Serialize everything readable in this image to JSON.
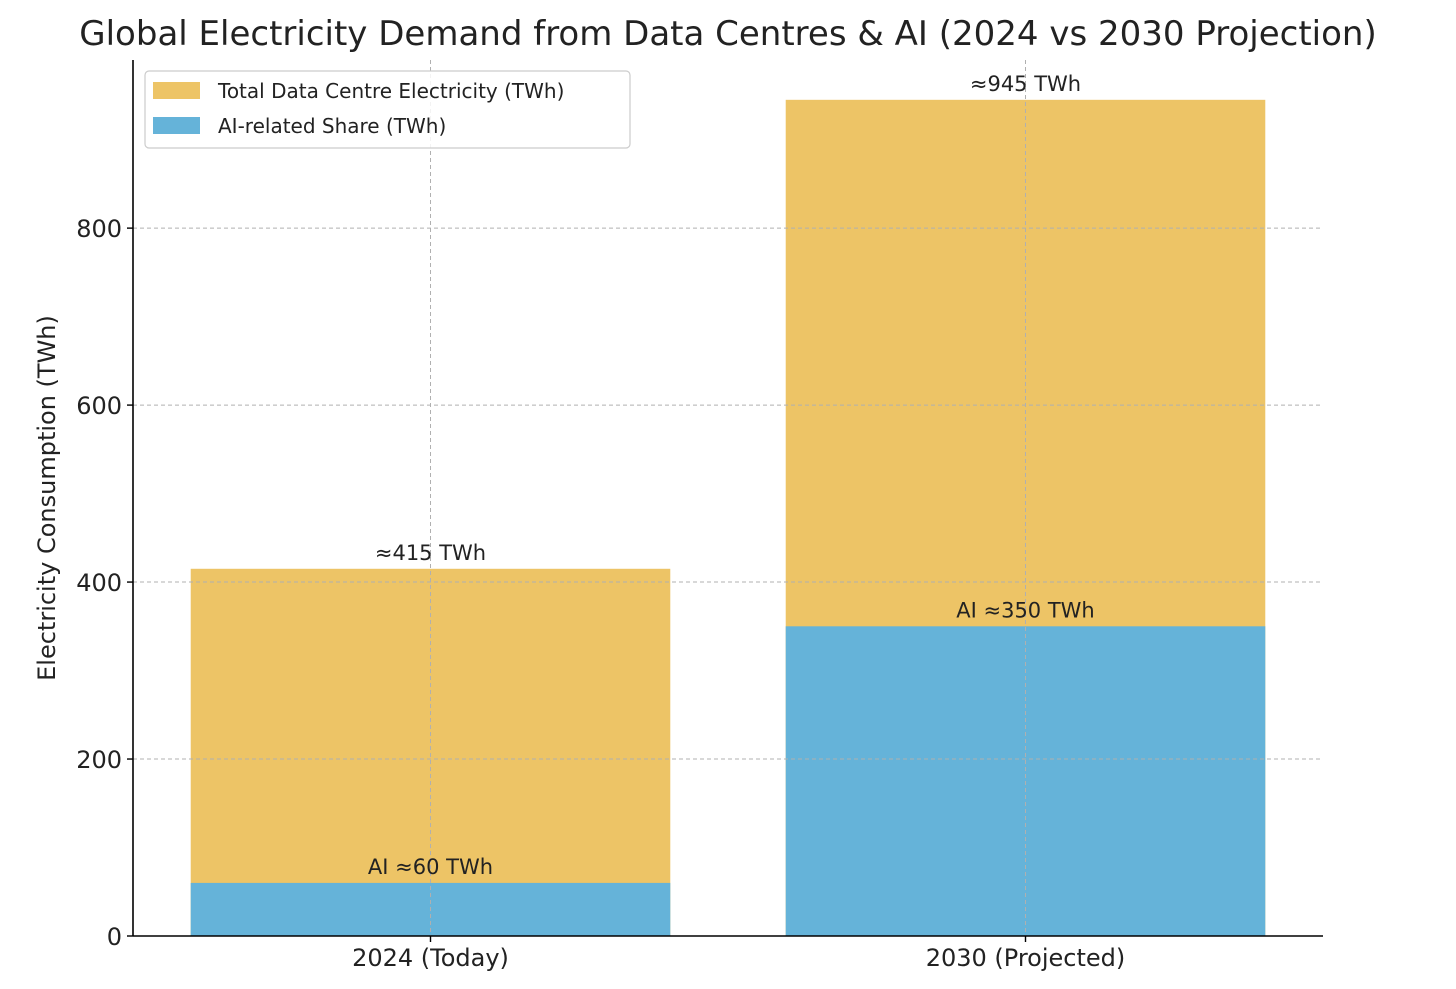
{
  "chart_data": {
    "type": "bar",
    "stacked": "overlay",
    "title": "Global Electricity Demand from Data Centres & AI (2024 vs 2030 Projection)",
    "xlabel": "",
    "ylabel": "Electricity Consumption (TWh)",
    "categories": [
      "2024 (Today)",
      "2030 (Projected)"
    ],
    "ylim": [
      0,
      990
    ],
    "yticks": [
      0,
      200,
      400,
      600,
      800
    ],
    "grid": true,
    "legend_position": "top-left",
    "series": [
      {
        "name": "Total Data Centre Electricity (TWh)",
        "values": [
          415,
          945
        ],
        "color": "#EDC466",
        "labels": [
          "≈415 TWh",
          "≈945 TWh"
        ]
      },
      {
        "name": "AI-related Share (TWh)",
        "values": [
          60,
          350
        ],
        "color": "#65B3D9",
        "labels": [
          "AI ≈60 TWh",
          "AI ≈350 TWh"
        ]
      }
    ]
  }
}
